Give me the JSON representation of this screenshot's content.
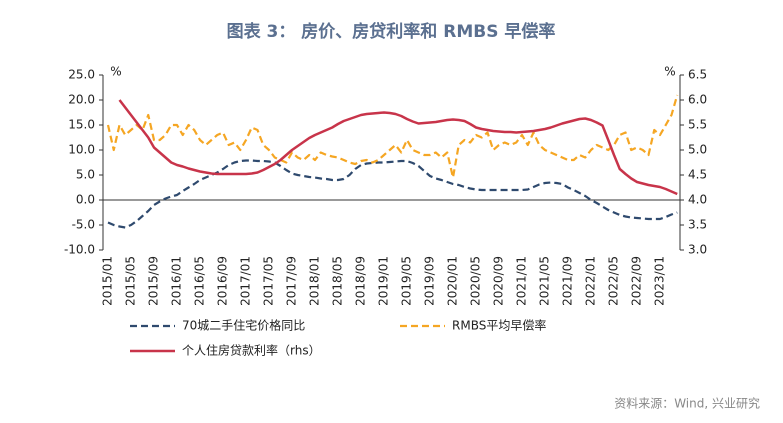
{
  "chart_data": {
    "type": "line",
    "title": "图表 3： 房价、房贷利率和 RMBS 早偿率",
    "source": "资料来源：Wind, 兴业研究",
    "ylabel": "%",
    "y2label": "%",
    "categories": [
      "2015/01",
      null,
      null,
      null,
      "2015/05",
      null,
      null,
      null,
      "2015/09",
      null,
      null,
      null,
      "2016/01",
      null,
      null,
      null,
      "2016/05",
      null,
      null,
      null,
      "2016/09",
      null,
      null,
      null,
      "2017/01",
      null,
      null,
      null,
      "2017/05",
      null,
      null,
      null,
      "2017/09",
      null,
      null,
      null,
      "2018/01",
      null,
      null,
      null,
      "2018/05",
      null,
      null,
      null,
      "2018/09",
      null,
      null,
      null,
      "2019/01",
      null,
      null,
      null,
      "2019/05",
      null,
      null,
      null,
      "2019/09",
      null,
      null,
      null,
      "2020/01",
      null,
      null,
      null,
      "2020/05",
      null,
      null,
      null,
      "2020/09",
      null,
      null,
      null,
      "2021/01",
      null,
      null,
      null,
      "2021/05",
      null,
      null,
      null,
      "2021/09",
      null,
      null,
      null,
      "2022/01",
      null,
      null,
      null,
      "2022/05",
      null,
      null,
      null,
      "2022/09",
      null,
      null,
      null,
      "2023/01",
      null,
      null,
      null
    ],
    "ylim": [
      -10,
      25
    ],
    "yticks": [
      {
        "value": -10,
        "label": "-10.0"
      },
      {
        "value": -5,
        "label": "-5.0"
      },
      {
        "value": 0,
        "label": "0.0"
      },
      {
        "value": 5,
        "label": "5.0"
      },
      {
        "value": 10,
        "label": "10.0"
      },
      {
        "value": 15,
        "label": "15.0"
      },
      {
        "value": 20,
        "label": "20.0"
      },
      {
        "value": 25,
        "label": "25.0"
      }
    ],
    "y2lim": [
      3,
      6.5
    ],
    "y2ticks": [
      {
        "value": 3,
        "label": "3.0"
      },
      3.5,
      {
        "value": 4,
        "label": "4.0"
      },
      4.5,
      {
        "value": 5,
        "label": "5.0"
      },
      5.5,
      {
        "value": 6,
        "label": "6.0"
      },
      6.5
    ],
    "series": [
      {
        "name": "70城二手住宅价格同比",
        "color": "#2f4a6e",
        "dash": true,
        "values": [
          -4.5,
          -5.0,
          -5.3,
          -5.5,
          -5.0,
          -4.2,
          -3.2,
          -2.2,
          -1.0,
          -0.3,
          0.3,
          0.7,
          1.0,
          1.8,
          2.5,
          3.2,
          4.0,
          4.5,
          5.0,
          5.5,
          6.2,
          7.0,
          7.5,
          7.8,
          7.9,
          7.9,
          7.8,
          7.8,
          7.7,
          7.5,
          6.8,
          6.0,
          5.3,
          5.0,
          4.8,
          4.6,
          4.5,
          4.3,
          4.2,
          4.0,
          4.0,
          4.2,
          5.0,
          6.2,
          7.0,
          7.3,
          7.4,
          7.5,
          7.5,
          7.6,
          7.7,
          7.8,
          7.8,
          7.4,
          6.8,
          5.8,
          4.8,
          4.3,
          4.0,
          3.6,
          3.2,
          3.0,
          2.6,
          2.3,
          2.1,
          2.0,
          2.0,
          2.0,
          2.0,
          2.0,
          2.0,
          2.0,
          2.0,
          2.1,
          2.6,
          3.1,
          3.4,
          3.5,
          3.4,
          3.2,
          2.5,
          2.0,
          1.4,
          0.8,
          0.0,
          -0.6,
          -1.3,
          -2.0,
          -2.5,
          -3.0,
          -3.3,
          -3.5,
          -3.6,
          -3.7,
          -3.8,
          -3.8,
          -3.8,
          -3.4,
          -2.9,
          -2.5
        ]
      },
      {
        "name": "RMBS平均早偿率",
        "color": "#f5a623",
        "dash": true,
        "axis": "y2",
        "values": [
          5.5,
          5.0,
          5.5,
          5.3,
          5.4,
          5.5,
          5.4,
          5.7,
          5.2,
          5.2,
          5.3,
          5.5,
          5.5,
          5.3,
          5.5,
          5.4,
          5.2,
          5.1,
          5.2,
          5.3,
          5.35,
          5.1,
          5.15,
          5.0,
          5.2,
          5.45,
          5.4,
          5.1,
          5.0,
          4.85,
          4.8,
          4.75,
          4.95,
          4.85,
          4.8,
          4.9,
          4.8,
          4.95,
          4.9,
          4.87,
          4.85,
          4.8,
          4.75,
          4.72,
          4.78,
          4.8,
          4.75,
          4.8,
          4.9,
          5.0,
          5.1,
          4.95,
          5.2,
          5.0,
          4.95,
          4.9,
          4.9,
          4.95,
          4.85,
          4.95,
          4.45,
          5.1,
          5.2,
          5.15,
          5.3,
          5.25,
          5.35,
          5.0,
          5.1,
          5.15,
          5.1,
          5.15,
          5.3,
          5.1,
          5.35,
          5.1,
          5.0,
          4.95,
          4.9,
          4.85,
          4.8,
          4.8,
          4.9,
          4.85,
          5.0,
          5.1,
          5.05,
          5.0,
          5.1,
          5.3,
          5.35,
          5.0,
          5.05,
          5.0,
          4.9,
          5.4,
          5.3,
          5.5,
          5.7,
          6.1
        ]
      },
      {
        "name": "个人住房贷款利率（rhs）",
        "color": "#c8344a",
        "dash": false,
        "axis": "y2",
        "values": [
          null,
          null,
          6.0,
          5.85,
          5.7,
          5.55,
          5.4,
          5.25,
          5.05,
          4.95,
          4.85,
          4.75,
          4.7,
          4.67,
          4.63,
          4.6,
          4.57,
          4.55,
          4.53,
          4.52,
          4.52,
          4.52,
          4.52,
          4.52,
          4.52,
          4.53,
          4.55,
          4.6,
          4.66,
          4.72,
          4.8,
          4.9,
          5.0,
          5.08,
          5.16,
          5.24,
          5.3,
          5.35,
          5.4,
          5.45,
          5.52,
          5.58,
          5.62,
          5.66,
          5.7,
          5.72,
          5.73,
          5.74,
          5.75,
          5.74,
          5.72,
          5.68,
          5.62,
          5.57,
          5.53,
          5.54,
          5.55,
          5.56,
          5.58,
          5.6,
          5.61,
          5.6,
          5.58,
          5.52,
          5.45,
          5.42,
          5.4,
          5.38,
          5.37,
          5.36,
          5.36,
          5.35,
          5.36,
          5.37,
          5.38,
          5.4,
          5.42,
          5.45,
          5.49,
          5.53,
          5.56,
          5.59,
          5.62,
          5.63,
          5.6,
          5.55,
          5.49,
          5.2,
          4.9,
          4.62,
          4.52,
          4.43,
          4.36,
          4.33,
          4.3,
          4.28,
          4.26,
          4.22,
          4.17,
          4.12
        ]
      }
    ]
  }
}
